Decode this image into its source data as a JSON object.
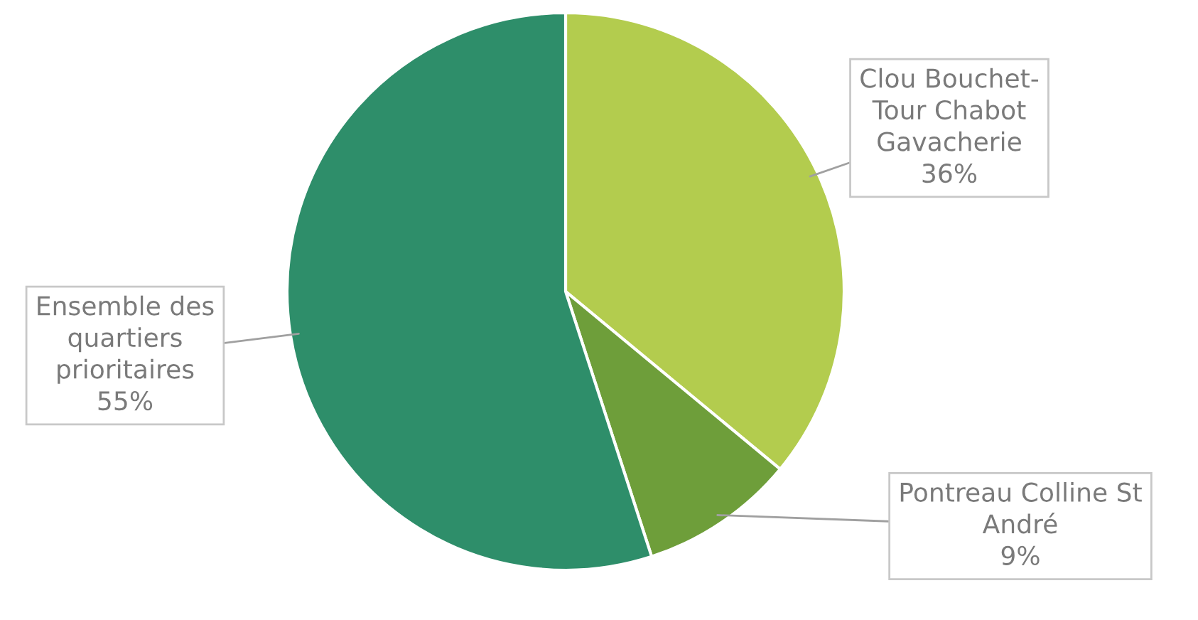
{
  "chart_data": {
    "type": "pie",
    "categories": [
      "Clou Bouchet-Tour Chabot Gavacherie",
      "Pontreau Colline St André",
      "Ensemble des quartiers prioritaires"
    ],
    "values": [
      36,
      9,
      55
    ],
    "value_labels": [
      "36%",
      "9%",
      "55%"
    ],
    "colors": [
      "#b3cc4e",
      "#6e9e3a",
      "#2e8e6a"
    ],
    "legend": false
  }
}
